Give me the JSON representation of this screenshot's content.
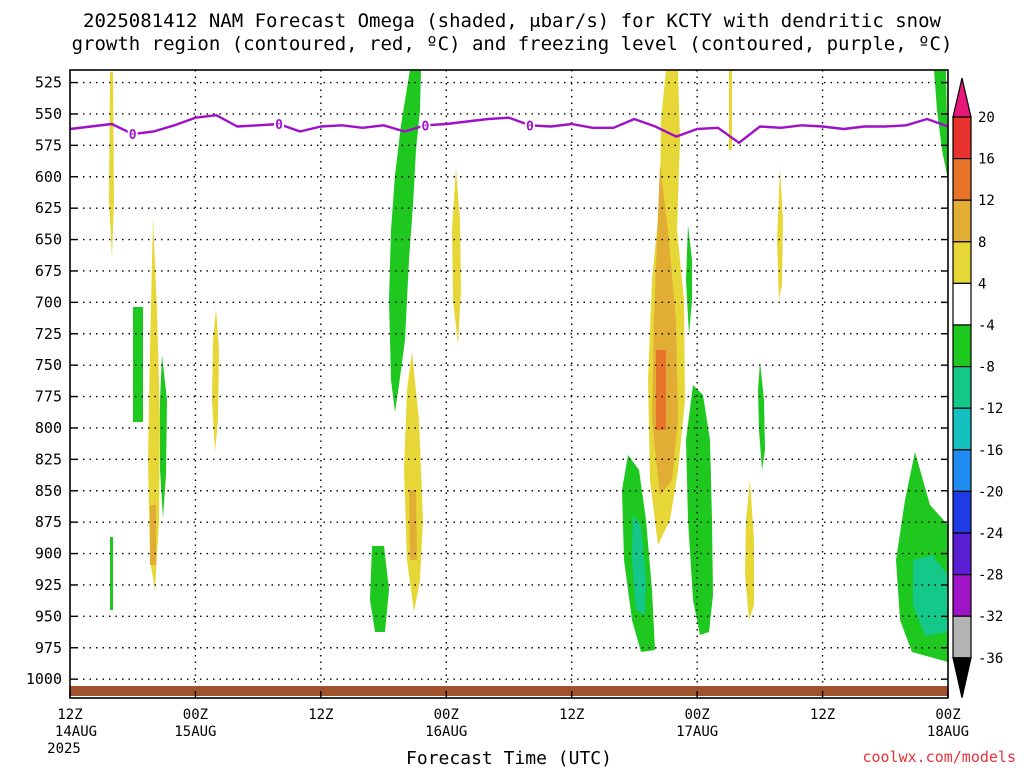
{
  "title": {
    "line1": "2025081412 NAM Forecast Omega (shaded, μbar/s) for KCTY with dendritic snow",
    "line2": "growth region (contoured, red, ºC) and freezing level (contoured, purple, ºC)"
  },
  "credit": "coolwx.com/models",
  "chart_data": {
    "type": "heatmap",
    "title": "2025081412 NAM Forecast Omega (shaded, μbar/s) for KCTY with dendritic snow growth region (contoured, red, ºC) and freezing level (contoured, purple, ºC)",
    "xlabel": "Forecast Time (UTC)",
    "ylabel": "",
    "y_axis": {
      "scale": "pressure (hPa), inverted",
      "ylim": [
        1015,
        515
      ],
      "ticks": [
        "525",
        "550",
        "575",
        "600",
        "625",
        "650",
        "675",
        "700",
        "725",
        "750",
        "775",
        "800",
        "825",
        "850",
        "875",
        "900",
        "925",
        "950",
        "975",
        "1000"
      ]
    },
    "x_axis": {
      "xlim_hours": [
        0,
        84
      ],
      "ticks": [
        {
          "hour": 0,
          "line1": "12Z",
          "line2": "14AUG",
          "line3": "2025"
        },
        {
          "hour": 12,
          "line1": "00Z",
          "line2": "15AUG",
          "line3": ""
        },
        {
          "hour": 24,
          "line1": "12Z",
          "line2": "",
          "line3": ""
        },
        {
          "hour": 36,
          "line1": "00Z",
          "line2": "16AUG",
          "line3": ""
        },
        {
          "hour": 48,
          "line1": "12Z",
          "line2": "",
          "line3": ""
        },
        {
          "hour": 60,
          "line1": "00Z",
          "line2": "17AUG",
          "line3": ""
        },
        {
          "hour": 72,
          "line1": "12Z",
          "line2": "",
          "line3": ""
        },
        {
          "hour": 84,
          "line1": "00Z",
          "line2": "18AUG",
          "line3": ""
        }
      ]
    },
    "colorbar": {
      "labels": [
        "20",
        "16",
        "12",
        "8",
        "4",
        "-4",
        "-8",
        "-12",
        "-16",
        "-20",
        "-24",
        "-28",
        "-32",
        "-36"
      ],
      "colors": [
        "#e8177a",
        "#e8322e",
        "#e8742a",
        "#e1ad35",
        "#e6d737",
        "#ffffff",
        "#1ec81e",
        "#14c88a",
        "#14c0c0",
        "#1e8cf0",
        "#1e3ce6",
        "#5a1ed2",
        "#a014c8",
        "#b4b4b4",
        "#000000"
      ]
    },
    "freezing_level": {
      "label": "0",
      "color": "#a010c8",
      "hours": [
        0,
        2,
        4,
        6,
        8,
        10,
        12,
        14,
        16,
        18,
        20,
        22,
        24,
        26,
        28,
        30,
        32,
        34,
        36,
        38,
        40,
        42,
        44,
        46,
        48,
        50,
        52,
        54,
        56,
        58,
        60,
        62,
        64,
        66,
        68,
        70,
        72,
        74,
        76,
        78,
        80,
        82,
        84
      ],
      "pressure": [
        562,
        560,
        558,
        566,
        564,
        559,
        553,
        551,
        560,
        559,
        558,
        564,
        560,
        559,
        561,
        559,
        564,
        559,
        558,
        556,
        554,
        553,
        559,
        560,
        558,
        561,
        561,
        554,
        560,
        568,
        562,
        561,
        573,
        560,
        561,
        559,
        560,
        562,
        560,
        560,
        559,
        554,
        560
      ]
    },
    "omega_regions": [
      {
        "name": "rising-green",
        "color": "#1ec81e"
      },
      {
        "name": "sinking-yellow",
        "color": "#e6d737"
      },
      {
        "name": "sinking-orange",
        "color": "#e1ad35"
      }
    ],
    "terrain_color": "#a0522d"
  }
}
